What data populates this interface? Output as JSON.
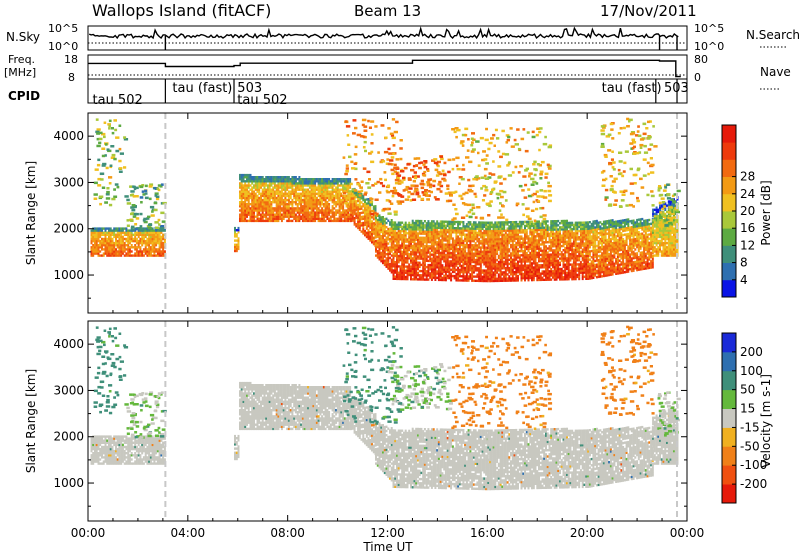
{
  "header": {
    "site_title": "Wallops Island (fitACF)",
    "beam": "Beam 13",
    "date": "17/Nov/2011"
  },
  "side_labels": {
    "nsky": "N.Sky",
    "freq_line1": "Freq.",
    "freq_line2": "[MHz]",
    "cpid": "CPID",
    "nsearch": "N.Search",
    "nave": "Nave"
  },
  "nsky_axis": {
    "top": "10^5",
    "bottom": "10^0"
  },
  "nsearch_axis": {
    "top": "10^5",
    "bottom": "10^0"
  },
  "freq_axis": {
    "top": "18",
    "bottom": "8"
  },
  "nave_axis": {
    "top": "80",
    "bottom": "0"
  },
  "cpid_labels": [
    {
      "text": "tau 502",
      "x": 0.1,
      "row": 1
    },
    {
      "text": "tau (fast)",
      "x": 3.3,
      "row": 0
    },
    {
      "text": "503",
      "x": 5.9,
      "row": 0
    },
    {
      "text": "tau 502",
      "x": 5.9,
      "row": 1
    },
    {
      "text": "tau (fast)",
      "x": 20.5,
      "row": 0
    },
    {
      "text": "503",
      "x": 23.0,
      "row": 0
    }
  ],
  "cpid_breaks": [
    3.1,
    5.85,
    22.75,
    23.6
  ],
  "freq_steps": [
    {
      "t0": 0.0,
      "t1": 3.1,
      "v": 14.5
    },
    {
      "t0": 3.1,
      "t1": 5.85,
      "v": 13.2
    },
    {
      "t0": 5.85,
      "t1": 6.1,
      "v": 13.6
    },
    {
      "t0": 6.1,
      "t1": 13.0,
      "v": 14.6
    },
    {
      "t0": 13.0,
      "t1": 22.9,
      "v": 15.8
    },
    {
      "t0": 22.9,
      "t1": 23.55,
      "v": 15.5
    },
    {
      "t0": 23.55,
      "t1": 23.75,
      "v": 9.0
    }
  ],
  "power_colorbar": {
    "label": "Power [dB]",
    "ticks": [
      "4",
      "8",
      "12",
      "16",
      "20",
      "24",
      "28"
    ],
    "colors": [
      "#0a14e6",
      "#2e6fb0",
      "#3f8f7a",
      "#5daa42",
      "#a9c83a",
      "#f0c020",
      "#f39a14",
      "#f26a10",
      "#ee3a0c",
      "#e61a0a"
    ]
  },
  "velocity_colorbar": {
    "label": "Velocity [m s-1]",
    "ticks": [
      "200",
      "100",
      "50",
      "15",
      "-15",
      "-50",
      "-100",
      "-200"
    ],
    "colors": [
      "#1a2ad8",
      "#2e6fb0",
      "#3f8f7a",
      "#64b83c",
      "#c8c8c0",
      "#f0b020",
      "#f08018",
      "#f05010",
      "#e61a0a"
    ]
  },
  "chart_data": {
    "type": "heatmap",
    "xlabel": "Time UT",
    "xticks": [
      "00:00",
      "04:00",
      "08:00",
      "12:00",
      "16:00",
      "20:00",
      "00:00"
    ],
    "xlim": [
      0,
      24
    ],
    "ylabel": "Slant Range [km]",
    "yticks": [
      1000,
      2000,
      3000,
      4000
    ],
    "ylim": [
      180,
      4500
    ],
    "panels": [
      "Power",
      "Velocity"
    ],
    "scatter_regions": [
      {
        "t0": 0.1,
        "t1": 3.1,
        "lower": [
          1400,
          1400
        ],
        "upper": [
          2000,
          2000
        ],
        "power": 24,
        "vel": 0
      },
      {
        "t0": 5.85,
        "t1": 6.05,
        "lower": [
          1500,
          1500
        ],
        "upper": [
          2000,
          2000
        ],
        "power": 22,
        "vel": 0
      },
      {
        "t0": 6.05,
        "t1": 10.5,
        "lower": [
          2150,
          2150
        ],
        "upper": [
          3150,
          3050
        ],
        "power": 24,
        "vel": 0
      },
      {
        "t0": 10.5,
        "t1": 11.5,
        "lower": [
          2150,
          1600
        ],
        "upper": [
          2900,
          2500
        ],
        "power": 25,
        "vel": 0
      },
      {
        "t0": 11.5,
        "t1": 12.2,
        "lower": [
          1400,
          1000
        ],
        "upper": [
          2300,
          2150
        ],
        "power": 26,
        "vel": 0
      },
      {
        "t0": 12.2,
        "t1": 16.0,
        "lower": [
          900,
          850
        ],
        "upper": [
          2150,
          2150
        ],
        "power": 27,
        "vel": 0
      },
      {
        "t0": 16.0,
        "t1": 20.0,
        "lower": [
          850,
          900
        ],
        "upper": [
          2150,
          2150
        ],
        "power": 27,
        "vel": 0
      },
      {
        "t0": 20.0,
        "t1": 22.6,
        "lower": [
          900,
          1150
        ],
        "upper": [
          2150,
          2200
        ],
        "power": 25,
        "vel": 0
      },
      {
        "t0": 22.6,
        "t1": 23.6,
        "lower": [
          1400,
          1400
        ],
        "upper": [
          2400,
          2700
        ],
        "power": 20,
        "vel": 0
      }
    ],
    "sparse_regions": [
      {
        "t0": 0.2,
        "t1": 1.5,
        "lower": 2500,
        "upper": 4400,
        "power": 14,
        "vel": 50
      },
      {
        "t0": 1.5,
        "t1": 3.0,
        "lower": 2000,
        "upper": 3000,
        "power": 12,
        "vel": 15
      },
      {
        "t0": 10.2,
        "t1": 12.5,
        "lower": 2300,
        "upper": 4400,
        "power": 20,
        "vel": 50
      },
      {
        "t0": 12.0,
        "t1": 14.5,
        "lower": 2600,
        "upper": 3600,
        "power": 22,
        "vel": 15
      },
      {
        "t0": 14.5,
        "t1": 18.5,
        "lower": 2200,
        "upper": 4200,
        "power": 18,
        "vel": -50
      },
      {
        "t0": 20.5,
        "t1": 22.7,
        "lower": 2500,
        "upper": 4400,
        "power": 18,
        "vel": -50
      },
      {
        "t0": 22.8,
        "t1": 23.6,
        "lower": 2000,
        "upper": 3000,
        "power": 14,
        "vel": 15
      }
    ],
    "gap_ranges_hours": [
      [
        3.1,
        5.85
      ]
    ],
    "vertical_dashes": [
      3.1,
      23.6
    ]
  }
}
